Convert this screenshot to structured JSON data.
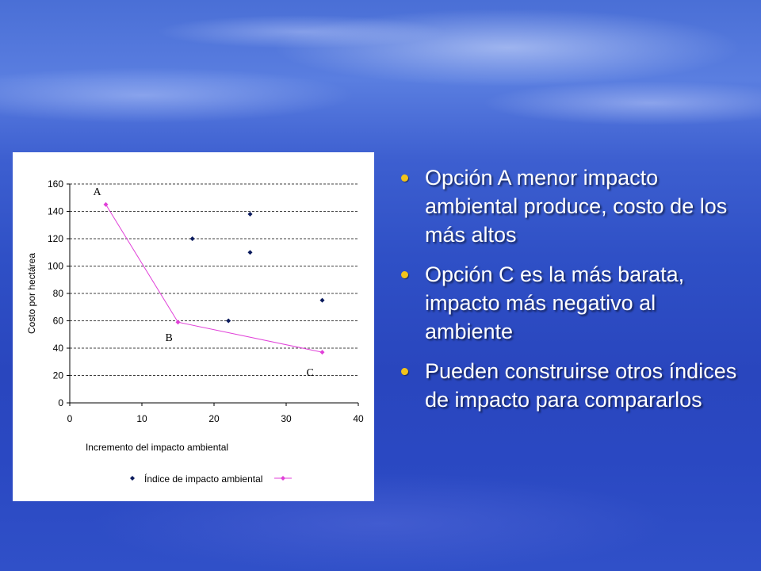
{
  "slide": {
    "bullets": [
      {
        "text": "Opción A menor impacto ambiental produce, costo de los más altos"
      },
      {
        "text": "Opción C es la más barata, impacto más negativo al ambiente"
      },
      {
        "text": "Pueden construirse otros índices de impacto para compararlos"
      }
    ],
    "bullet_color": "#f2c31a"
  },
  "chart_data": {
    "type": "scatter",
    "xlabel": "Incremento del impacto ambiental",
    "ylabel": "Costo por hectárea",
    "xlim": [
      0,
      40
    ],
    "ylim": [
      0,
      160
    ],
    "x_ticks": [
      0,
      10,
      20,
      30,
      40
    ],
    "y_ticks": [
      0,
      20,
      40,
      60,
      80,
      100,
      120,
      140,
      160
    ],
    "grid": "horizontal dashed",
    "legend": {
      "position": "bottom",
      "label": "Índice de impacto ambiental"
    },
    "series": [
      {
        "name": "Índice de impacto ambiental",
        "kind": "scatter",
        "color": "#0a1a5c",
        "points": [
          [
            17,
            120
          ],
          [
            25,
            138
          ],
          [
            25,
            110
          ],
          [
            22,
            60
          ],
          [
            35,
            75
          ]
        ]
      },
      {
        "kind": "line",
        "color": "#e040d8",
        "points": [
          [
            5,
            145
          ],
          [
            15,
            59
          ],
          [
            35,
            37
          ]
        ]
      }
    ],
    "annotations": [
      {
        "text": "A",
        "x": 5,
        "y": 145
      },
      {
        "text": "B",
        "x": 15,
        "y": 59
      },
      {
        "text": "C",
        "x": 35,
        "y": 37
      }
    ]
  }
}
